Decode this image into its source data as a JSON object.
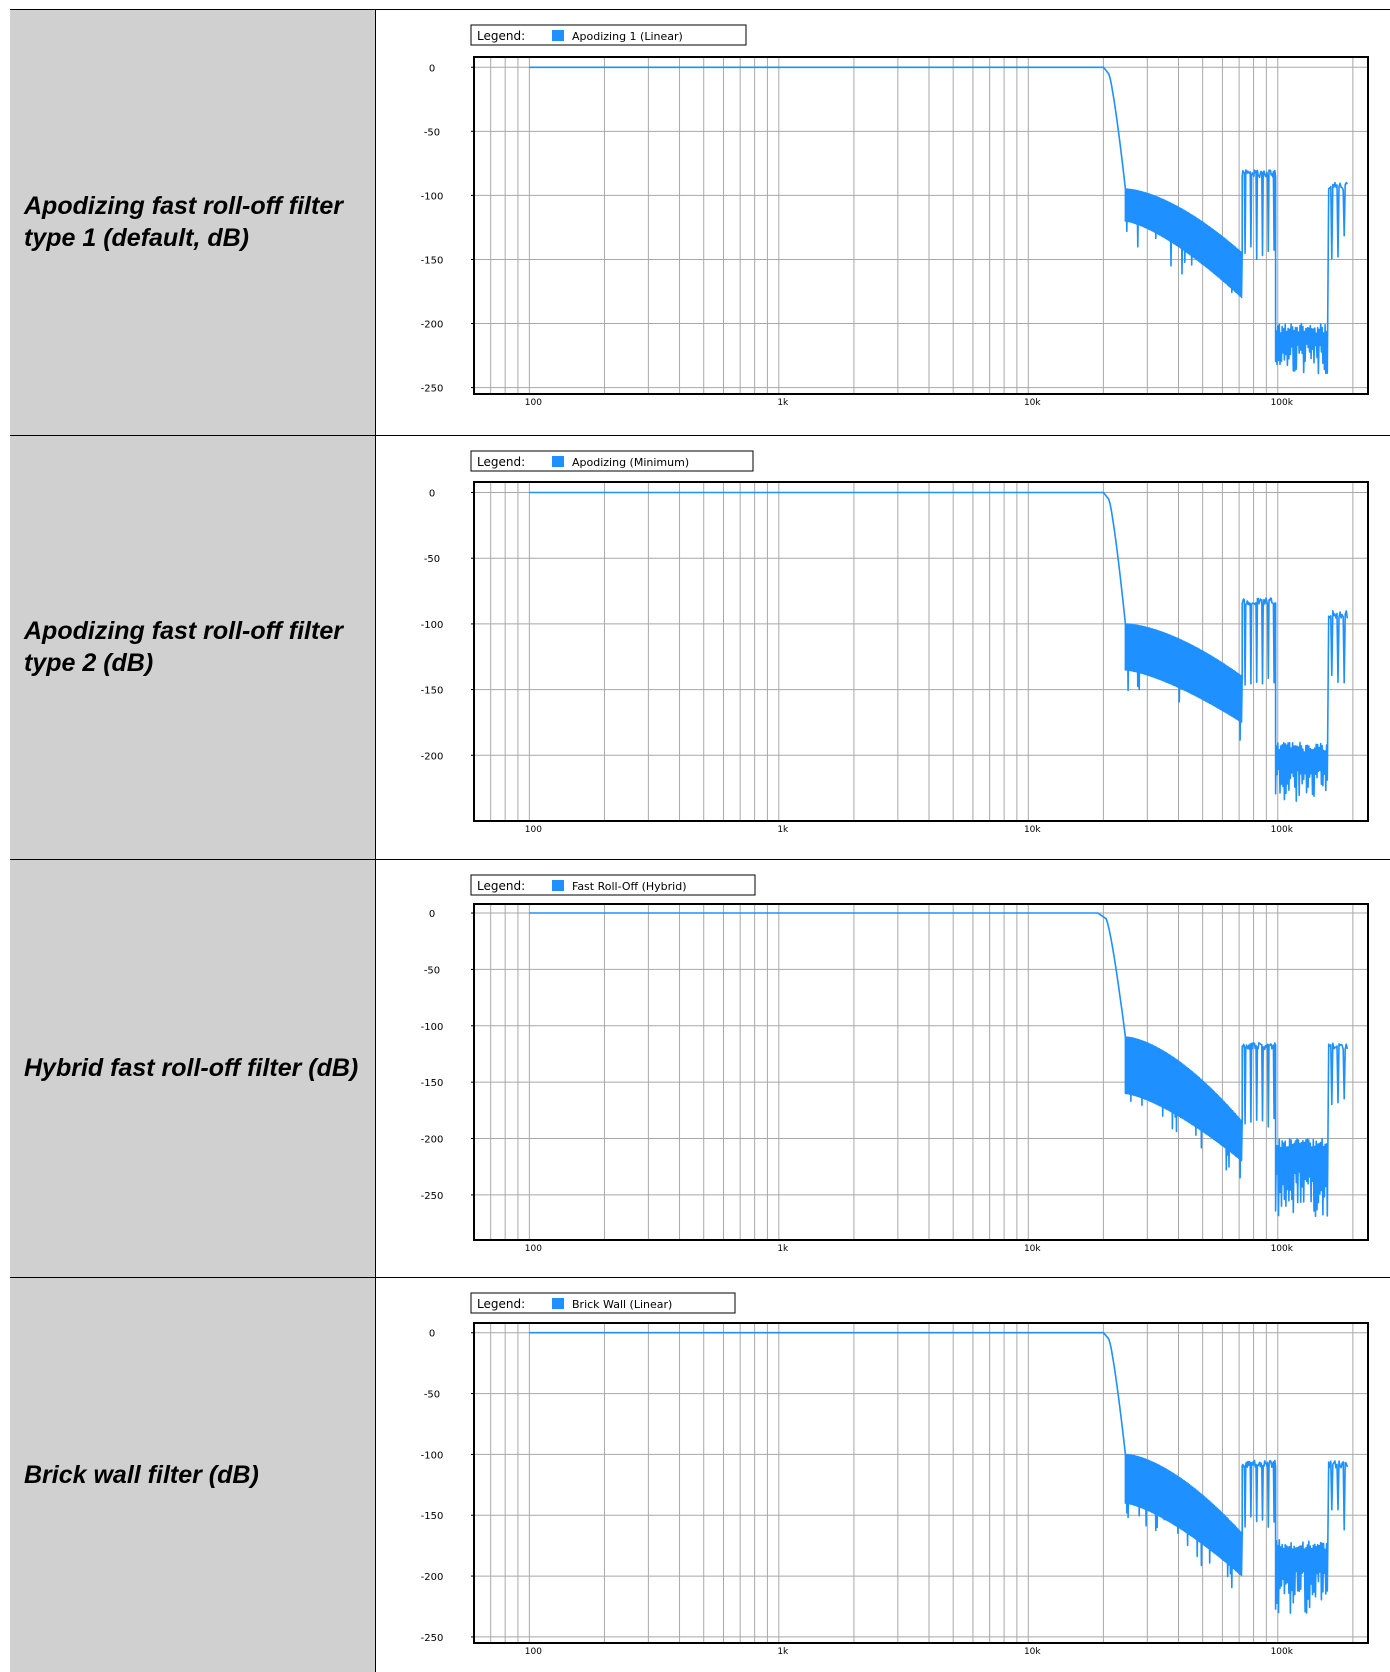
{
  "rows": [
    {
      "label": "Apodizing fast roll-off filter type 1 (default, dB)",
      "chart_data": {
        "type": "line",
        "legend_title": "Legend:",
        "series": [
          {
            "name": "Apodizing 1 (Linear)",
            "color": "#1e90ff"
          }
        ],
        "xscale": "log",
        "xlim": [
          60,
          230000
        ],
        "ylim": [
          -255,
          8
        ],
        "yticks": [
          0,
          -50,
          -100,
          -150,
          -200,
          -250
        ],
        "xticks": [
          {
            "value": 100,
            "label": "100"
          },
          {
            "value": 1000,
            "label": "1k"
          },
          {
            "value": 10000,
            "label": "10k"
          },
          {
            "value": 100000,
            "label": "100k"
          }
        ],
        "profile": {
          "f_start": 100,
          "flat_until": 20000,
          "knee": 21000,
          "steep_end": 24500,
          "floor_top": -95,
          "floor_bottom": -120,
          "floor_end": -180,
          "hump_start": 72000,
          "hump_end": 98000,
          "hump_level": -80,
          "hump_dips": -140,
          "low_start": 98000,
          "low_end": 158000,
          "low_level": -200,
          "low_min": -240,
          "tail_start": 160000,
          "tail_end": 190000,
          "tail_level": -90
        }
      }
    },
    {
      "label": "Apodizing fast roll-off filter type 2 (dB)",
      "chart_data": {
        "type": "line",
        "legend_title": "Legend:",
        "series": [
          {
            "name": "Apodizing (Minimum)",
            "color": "#1e90ff"
          }
        ],
        "xscale": "log",
        "xlim": [
          60,
          230000
        ],
        "ylim": [
          -250,
          8
        ],
        "yticks": [
          0,
          -50,
          -100,
          -150,
          -200
        ],
        "xticks": [
          {
            "value": 100,
            "label": "100"
          },
          {
            "value": 1000,
            "label": "1k"
          },
          {
            "value": 10000,
            "label": "10k"
          },
          {
            "value": 100000,
            "label": "100k"
          }
        ],
        "profile": {
          "f_start": 100,
          "flat_until": 20000,
          "knee": 21000,
          "steep_end": 24500,
          "floor_top": -100,
          "floor_bottom": -135,
          "floor_end": -175,
          "hump_start": 72000,
          "hump_end": 98000,
          "hump_level": -80,
          "hump_dips": -140,
          "low_start": 98000,
          "low_end": 158000,
          "low_level": -190,
          "low_min": -235,
          "tail_start": 160000,
          "tail_end": 190000,
          "tail_level": -90
        }
      }
    },
    {
      "label": "Hybrid fast roll-off filter (dB)",
      "chart_data": {
        "type": "line",
        "legend_title": "Legend:",
        "series": [
          {
            "name": "Fast Roll-Off (Hybrid)",
            "color": "#1e90ff"
          }
        ],
        "xscale": "log",
        "xlim": [
          60,
          230000
        ],
        "ylim": [
          -290,
          8
        ],
        "yticks": [
          0,
          -50,
          -100,
          -150,
          -200,
          -250
        ],
        "xticks": [
          {
            "value": 100,
            "label": "100"
          },
          {
            "value": 1000,
            "label": "1k"
          },
          {
            "value": 10000,
            "label": "10k"
          },
          {
            "value": 100000,
            "label": "100k"
          }
        ],
        "profile": {
          "f_start": 100,
          "flat_until": 19000,
          "knee": 20500,
          "steep_end": 24500,
          "floor_top": -110,
          "floor_bottom": -160,
          "floor_end": -220,
          "hump_start": 72000,
          "hump_end": 98000,
          "hump_level": -115,
          "hump_dips": -180,
          "low_start": 98000,
          "low_end": 158000,
          "low_level": -200,
          "low_min": -270,
          "tail_start": 160000,
          "tail_end": 190000,
          "tail_level": -115
        }
      }
    },
    {
      "label": "Brick wall filter (dB)",
      "chart_data": {
        "type": "line",
        "legend_title": "Legend:",
        "series": [
          {
            "name": "Brick Wall (Linear)",
            "color": "#1e90ff"
          }
        ],
        "xscale": "log",
        "xlim": [
          60,
          230000
        ],
        "ylim": [
          -255,
          8
        ],
        "yticks": [
          0,
          -50,
          -100,
          -150,
          -200,
          -250
        ],
        "xticks": [
          {
            "value": 100,
            "label": "100"
          },
          {
            "value": 1000,
            "label": "1k"
          },
          {
            "value": 10000,
            "label": "10k"
          },
          {
            "value": 100000,
            "label": "100k"
          }
        ],
        "profile": {
          "f_start": 100,
          "flat_until": 20000,
          "knee": 21000,
          "steep_end": 24500,
          "floor_top": -100,
          "floor_bottom": -140,
          "floor_end": -200,
          "hump_start": 72000,
          "hump_end": 98000,
          "hump_level": -105,
          "hump_dips": -150,
          "low_start": 98000,
          "low_end": 158000,
          "low_level": -170,
          "low_min": -235,
          "tail_start": 160000,
          "tail_end": 190000,
          "tail_level": -105
        }
      }
    }
  ]
}
